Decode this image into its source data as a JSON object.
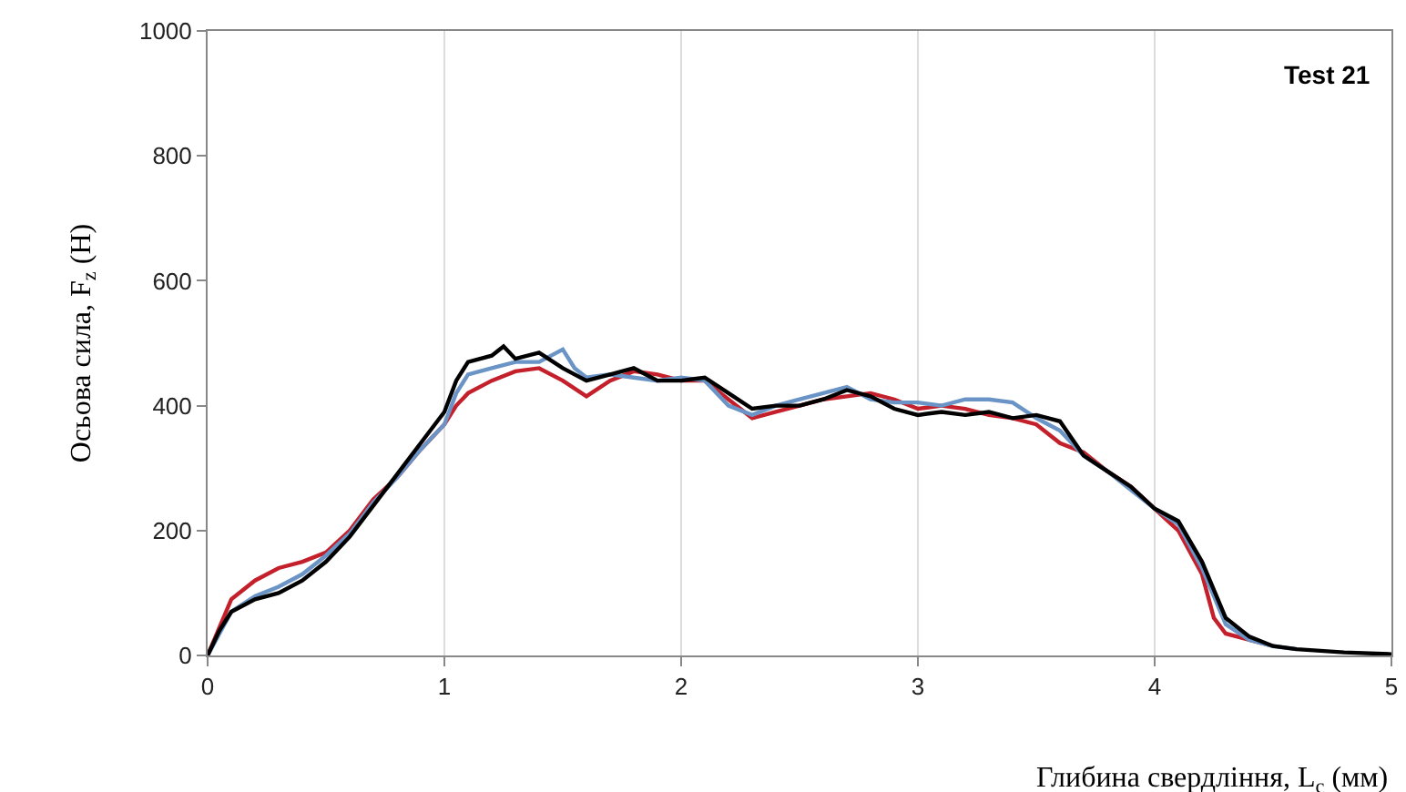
{
  "chart_data": {
    "type": "line",
    "xlabel": "Глибина свердління, L$_{c}$ (мм)",
    "ylabel": "Осьова сила, F$_{z}$ (Н)",
    "annotations": [
      "Test 21"
    ],
    "xlim": [
      0,
      5
    ],
    "xticks": [
      0,
      1,
      2,
      3,
      4,
      5
    ],
    "ylim": [
      0,
      1000
    ],
    "yticks": [
      0,
      200,
      400,
      600,
      800,
      1000
    ],
    "grid": "x",
    "marker": "none",
    "line_style": "solid",
    "series": [
      {
        "color": "#c4202b",
        "x": [
          0,
          0.1,
          0.2,
          0.3,
          0.4,
          0.5,
          0.6,
          0.7,
          0.8,
          0.9,
          1.0,
          1.05,
          1.1,
          1.2,
          1.3,
          1.4,
          1.5,
          1.6,
          1.7,
          1.8,
          1.9,
          2.0,
          2.1,
          2.2,
          2.3,
          2.4,
          2.5,
          2.6,
          2.7,
          2.8,
          2.9,
          3.0,
          3.1,
          3.2,
          3.3,
          3.4,
          3.5,
          3.6,
          3.7,
          3.8,
          3.9,
          4.0,
          4.1,
          4.2,
          4.25,
          4.3,
          4.4,
          4.5
        ],
        "values": [
          0,
          90,
          120,
          140,
          150,
          165,
          200,
          250,
          285,
          330,
          370,
          400,
          420,
          440,
          455,
          460,
          440,
          415,
          440,
          455,
          450,
          440,
          440,
          410,
          380,
          390,
          400,
          410,
          415,
          420,
          410,
          395,
          400,
          395,
          385,
          380,
          370,
          340,
          325,
          295,
          270,
          235,
          200,
          130,
          60,
          35,
          25,
          15
        ]
      },
      {
        "color": "#6b94c6",
        "x": [
          0,
          0.1,
          0.2,
          0.3,
          0.4,
          0.5,
          0.6,
          0.7,
          0.8,
          0.9,
          1.0,
          1.05,
          1.1,
          1.2,
          1.3,
          1.4,
          1.5,
          1.55,
          1.6,
          1.7,
          1.8,
          1.9,
          2.0,
          2.1,
          2.2,
          2.3,
          2.4,
          2.5,
          2.6,
          2.7,
          2.8,
          2.9,
          3.0,
          3.1,
          3.2,
          3.3,
          3.4,
          3.5,
          3.6,
          3.7,
          3.8,
          3.9,
          4.0,
          4.1,
          4.2,
          4.3,
          4.4,
          4.5,
          4.6
        ],
        "values": [
          0,
          70,
          95,
          110,
          130,
          160,
          195,
          245,
          285,
          330,
          370,
          420,
          450,
          460,
          470,
          470,
          490,
          460,
          445,
          450,
          445,
          440,
          445,
          440,
          400,
          385,
          400,
          410,
          420,
          430,
          410,
          405,
          405,
          400,
          410,
          410,
          405,
          380,
          360,
          320,
          295,
          265,
          235,
          210,
          140,
          50,
          25,
          15,
          10
        ]
      },
      {
        "color": "#000000",
        "x": [
          0,
          0.05,
          0.1,
          0.2,
          0.3,
          0.4,
          0.5,
          0.6,
          0.7,
          0.8,
          0.9,
          1.0,
          1.05,
          1.1,
          1.2,
          1.25,
          1.3,
          1.4,
          1.5,
          1.6,
          1.7,
          1.8,
          1.9,
          2.0,
          2.1,
          2.2,
          2.3,
          2.4,
          2.5,
          2.6,
          2.7,
          2.8,
          2.9,
          3.0,
          3.1,
          3.2,
          3.3,
          3.4,
          3.5,
          3.6,
          3.7,
          3.8,
          3.9,
          4.0,
          4.1,
          4.2,
          4.3,
          4.4,
          4.5,
          4.6,
          4.8,
          5.0
        ],
        "values": [
          0,
          40,
          70,
          90,
          100,
          120,
          150,
          190,
          240,
          290,
          340,
          390,
          440,
          470,
          480,
          495,
          475,
          485,
          460,
          440,
          450,
          460,
          440,
          440,
          445,
          420,
          395,
          400,
          400,
          410,
          425,
          415,
          395,
          385,
          390,
          385,
          390,
          380,
          385,
          375,
          320,
          295,
          270,
          235,
          215,
          150,
          60,
          30,
          15,
          10,
          5,
          2
        ]
      }
    ]
  }
}
